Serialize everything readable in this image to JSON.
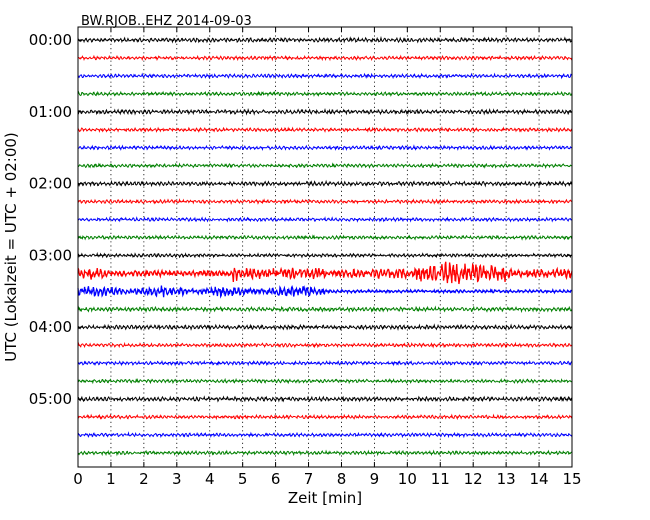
{
  "chart_data": {
    "type": "line",
    "title": "BW.RJOB..EHZ 2014-09-03",
    "xlabel": "Zeit  [min]",
    "ylabel": "UTC (Lokalzeit = UTC + 02:00)",
    "xlim": [
      0,
      15
    ],
    "xticks": [
      "0",
      "1",
      "2",
      "3",
      "4",
      "5",
      "6",
      "7",
      "8",
      "9",
      "10",
      "11",
      "12",
      "13",
      "14",
      "15"
    ],
    "yticks": [
      "00:00",
      "01:00",
      "02:00",
      "03:00",
      "04:00",
      "05:00"
    ],
    "row_interval_minutes": 15,
    "grid": "dotted",
    "colors": [
      "#000000",
      "#ff0000",
      "#0000ff",
      "#008000"
    ],
    "series": [
      {
        "offset": "00:00",
        "color": "#000000",
        "amplitude": 0.12
      },
      {
        "offset": "00:15",
        "color": "#ff0000",
        "amplitude": 0.1
      },
      {
        "offset": "00:30",
        "color": "#0000ff",
        "amplitude": 0.1
      },
      {
        "offset": "00:45",
        "color": "#008000",
        "amplitude": 0.1
      },
      {
        "offset": "01:00",
        "color": "#000000",
        "amplitude": 0.12
      },
      {
        "offset": "01:15",
        "color": "#ff0000",
        "amplitude": 0.1
      },
      {
        "offset": "01:30",
        "color": "#0000ff",
        "amplitude": 0.1
      },
      {
        "offset": "01:45",
        "color": "#008000",
        "amplitude": 0.1
      },
      {
        "offset": "02:00",
        "color": "#000000",
        "amplitude": 0.12
      },
      {
        "offset": "02:15",
        "color": "#ff0000",
        "amplitude": 0.1
      },
      {
        "offset": "02:30",
        "color": "#0000ff",
        "amplitude": 0.1
      },
      {
        "offset": "02:45",
        "color": "#008000",
        "amplitude": 0.1
      },
      {
        "offset": "03:00",
        "color": "#000000",
        "amplitude": 0.1
      },
      {
        "offset": "03:15",
        "color": "#ff0000",
        "amplitude": 0.35,
        "event": true
      },
      {
        "offset": "03:30",
        "color": "#0000ff",
        "amplitude": 0.28,
        "event": true
      },
      {
        "offset": "03:45",
        "color": "#008000",
        "amplitude": 0.12
      },
      {
        "offset": "04:00",
        "color": "#000000",
        "amplitude": 0.12
      },
      {
        "offset": "04:15",
        "color": "#ff0000",
        "amplitude": 0.1
      },
      {
        "offset": "04:30",
        "color": "#0000ff",
        "amplitude": 0.1
      },
      {
        "offset": "04:45",
        "color": "#008000",
        "amplitude": 0.1
      },
      {
        "offset": "05:00",
        "color": "#000000",
        "amplitude": 0.12
      },
      {
        "offset": "05:15",
        "color": "#ff0000",
        "amplitude": 0.1
      },
      {
        "offset": "05:30",
        "color": "#0000ff",
        "amplitude": 0.1
      },
      {
        "offset": "05:45",
        "color": "#008000",
        "amplitude": 0.1
      }
    ]
  }
}
